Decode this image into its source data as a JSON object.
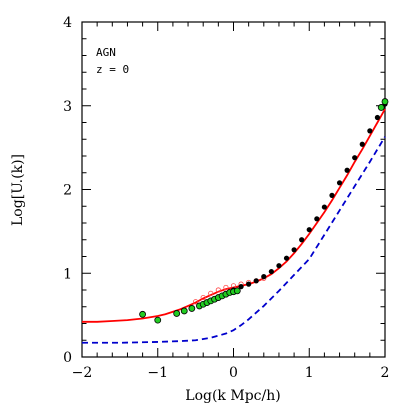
{
  "chart_data": {
    "type": "line",
    "xlabel": "Log(k Mpc/h)",
    "ylabel": "Log[U.(k)]",
    "xlim": [
      -2,
      2
    ],
    "ylim": [
      0,
      4
    ],
    "x_ticks": [
      "−2",
      "−1",
      "0",
      "1",
      "2"
    ],
    "y_ticks": [
      "0",
      "1",
      "2",
      "3",
      "4"
    ],
    "annotations": [
      "AGN",
      "z = 0"
    ],
    "grid": false,
    "colors": {
      "red_line": "#ff0000",
      "blue_dashed": "#0000cc",
      "green_points": "#22cc22",
      "black_points": "#000000",
      "red_points": "#ff4444"
    },
    "series": [
      {
        "style": "solid-red",
        "x": [
          -2.0,
          -1.8,
          -1.6,
          -1.4,
          -1.2,
          -1.0,
          -0.9,
          -0.8,
          -0.7,
          -0.6,
          -0.5,
          -0.4,
          -0.3,
          -0.2,
          -0.1,
          0.0,
          0.1,
          0.2,
          0.3,
          0.4,
          0.5,
          0.6,
          0.7,
          0.8,
          0.9,
          1.0,
          1.1,
          1.2,
          1.3,
          1.4,
          1.5,
          1.6,
          1.7,
          1.8,
          1.9,
          2.0
        ],
        "y": [
          0.42,
          0.42,
          0.43,
          0.44,
          0.46,
          0.49,
          0.51,
          0.54,
          0.57,
          0.61,
          0.65,
          0.7,
          0.74,
          0.78,
          0.81,
          0.83,
          0.85,
          0.87,
          0.9,
          0.94,
          0.99,
          1.06,
          1.14,
          1.24,
          1.35,
          1.47,
          1.6,
          1.73,
          1.87,
          2.02,
          2.17,
          2.33,
          2.48,
          2.64,
          2.8,
          2.96
        ]
      },
      {
        "style": "dashed-blue",
        "x": [
          -2.0,
          -1.5,
          -1.0,
          -0.7,
          -0.5,
          -0.3,
          -0.1,
          0.0,
          0.1,
          0.2,
          0.3,
          0.4,
          0.5,
          0.6,
          0.8,
          1.0,
          1.2,
          1.4,
          1.6,
          1.8,
          2.0
        ],
        "y": [
          0.17,
          0.17,
          0.18,
          0.19,
          0.2,
          0.23,
          0.28,
          0.32,
          0.38,
          0.45,
          0.53,
          0.61,
          0.7,
          0.79,
          0.98,
          1.17,
          1.46,
          1.75,
          2.04,
          2.33,
          2.63
        ]
      },
      {
        "style": "green-points",
        "x": [
          -1.2,
          -1.0,
          -0.75,
          -0.65,
          -0.55,
          -0.45,
          -0.4,
          -0.35,
          -0.3,
          -0.25,
          -0.2,
          -0.15,
          -0.1,
          -0.05,
          0.0,
          0.05,
          1.95,
          2.0
        ],
        "y": [
          0.51,
          0.44,
          0.52,
          0.55,
          0.58,
          0.61,
          0.63,
          0.65,
          0.67,
          0.69,
          0.71,
          0.73,
          0.75,
          0.77,
          0.78,
          0.79,
          2.98,
          3.05
        ]
      },
      {
        "style": "black-points",
        "x": [
          0.0,
          0.1,
          0.2,
          0.3,
          0.4,
          0.5,
          0.6,
          0.7,
          0.8,
          0.9,
          1.0,
          1.1,
          1.2,
          1.3,
          1.4,
          1.5,
          1.6,
          1.7,
          1.8,
          1.9,
          2.0
        ],
        "y": [
          0.8,
          0.84,
          0.87,
          0.91,
          0.96,
          1.02,
          1.09,
          1.18,
          1.28,
          1.4,
          1.52,
          1.65,
          1.79,
          1.93,
          2.08,
          2.23,
          2.38,
          2.54,
          2.7,
          2.86,
          3.02
        ]
      },
      {
        "style": "red-points",
        "x": [
          -0.5,
          -0.4,
          -0.3,
          -0.2,
          -0.1,
          0.0,
          0.1,
          0.2,
          0.3,
          0.4
        ],
        "y": [
          0.66,
          0.71,
          0.76,
          0.8,
          0.83,
          0.85,
          0.87,
          0.89,
          0.91,
          0.94
        ]
      }
    ]
  }
}
